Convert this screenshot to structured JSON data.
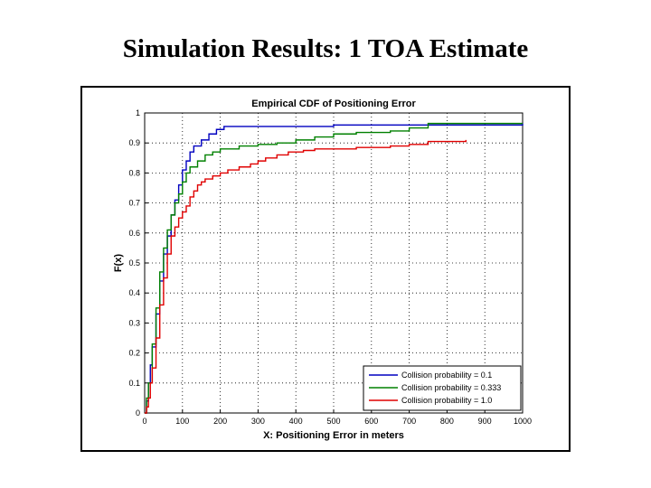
{
  "slide": {
    "title": "Simulation Results: 1 TOA Estimate"
  },
  "chart_data": {
    "type": "line",
    "step": true,
    "title": "Empirical CDF of Positioning Error",
    "xlabel": "X: Positioning Error in meters",
    "ylabel": "F(x)",
    "xlim": [
      0,
      1000
    ],
    "ylim": [
      0,
      1
    ],
    "xticks": [
      0,
      100,
      200,
      300,
      400,
      500,
      600,
      700,
      800,
      900,
      1000
    ],
    "xtick_labels": [
      "0",
      "100",
      "200",
      "300",
      "400",
      "500",
      "600",
      "700",
      "800",
      "900",
      "1000"
    ],
    "yticks": [
      0,
      0.1,
      0.2,
      0.3,
      0.4,
      0.5,
      0.6,
      0.7,
      0.8,
      0.9,
      1.0
    ],
    "ytick_labels": [
      "0",
      "0.1",
      "0.2",
      "0.3",
      "0.4",
      "0.5",
      "0.6",
      "0.7",
      "0.8",
      "0.9",
      "1"
    ],
    "grid": true,
    "legend_position": "bottom-right",
    "series": [
      {
        "name": "Collision probability = 0.1",
        "color": "#0000c0",
        "x": [
          0,
          5,
          10,
          15,
          20,
          30,
          40,
          50,
          60,
          70,
          80,
          90,
          100,
          110,
          120,
          130,
          150,
          170,
          190,
          210,
          230,
          250,
          500,
          1000
        ],
        "y": [
          0,
          0.04,
          0.1,
          0.16,
          0.22,
          0.33,
          0.44,
          0.53,
          0.59,
          0.66,
          0.71,
          0.76,
          0.81,
          0.84,
          0.87,
          0.89,
          0.91,
          0.93,
          0.945,
          0.955,
          0.955,
          0.955,
          0.96,
          0.965
        ]
      },
      {
        "name": "Collision probability = 0.333",
        "color": "#008000",
        "x": [
          0,
          5,
          10,
          20,
          30,
          40,
          50,
          60,
          70,
          80,
          90,
          100,
          110,
          120,
          140,
          160,
          180,
          200,
          250,
          300,
          350,
          400,
          450,
          500,
          560,
          600,
          650,
          700,
          750,
          1000
        ],
        "y": [
          0,
          0.05,
          0.1,
          0.23,
          0.35,
          0.47,
          0.55,
          0.61,
          0.66,
          0.7,
          0.73,
          0.77,
          0.8,
          0.82,
          0.84,
          0.86,
          0.87,
          0.88,
          0.89,
          0.895,
          0.9,
          0.91,
          0.92,
          0.93,
          0.935,
          0.935,
          0.94,
          0.95,
          0.965,
          0.965
        ]
      },
      {
        "name": "Collision probability = 1.0",
        "color": "#e00000",
        "x": [
          0,
          5,
          10,
          15,
          20,
          30,
          40,
          50,
          60,
          70,
          80,
          90,
          100,
          110,
          120,
          130,
          140,
          150,
          160,
          180,
          200,
          220,
          250,
          280,
          300,
          320,
          350,
          380,
          420,
          450,
          500,
          560,
          600,
          650,
          700,
          750,
          850
        ],
        "y": [
          0,
          0.02,
          0.05,
          0.1,
          0.15,
          0.25,
          0.36,
          0.45,
          0.53,
          0.59,
          0.62,
          0.65,
          0.67,
          0.69,
          0.72,
          0.74,
          0.76,
          0.77,
          0.78,
          0.79,
          0.8,
          0.81,
          0.82,
          0.83,
          0.84,
          0.85,
          0.86,
          0.87,
          0.875,
          0.88,
          0.88,
          0.885,
          0.885,
          0.89,
          0.895,
          0.905,
          0.91
        ]
      }
    ]
  }
}
